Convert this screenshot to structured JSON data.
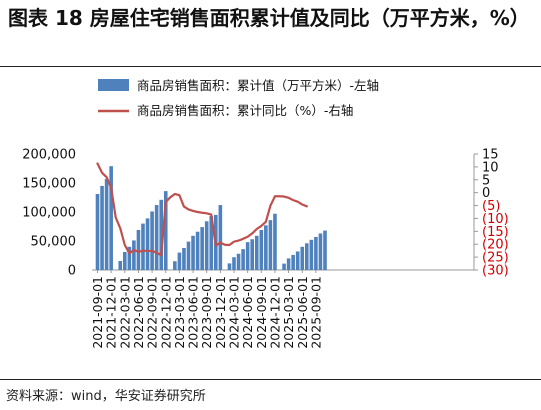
{
  "header": {
    "title": "图表 18 房屋住宅销售面积累计值及同比（万平方米，%）"
  },
  "footer": {
    "source": "资料来源：wind，华安证券研究所"
  },
  "colors": {
    "bar": "#4f81bd",
    "line": "#c0504d",
    "negative_tick": "#d10000"
  },
  "chart_data": {
    "type": "bar+line",
    "legend_placement": "top-left",
    "grid": false,
    "x_ticks": [
      "2021-09-01",
      "2021-12-01",
      "2022-03-01",
      "2022-06-01",
      "2022-09-01",
      "2022-12-01",
      "2023-03-01",
      "2023-06-01",
      "2023-09-01",
      "2023-12-01",
      "2024-03-01",
      "2024-06-01",
      "2024-09-01",
      "2024-12-01",
      "2025-03-01",
      "2025-06-01",
      "2025-09-01"
    ],
    "y_left": {
      "min": 0,
      "max": 200000,
      "ticks": [
        "0",
        "50,000",
        "100,000",
        "150,000",
        "200,000"
      ]
    },
    "y_right": {
      "min": -30,
      "max": 15,
      "ticks": [
        "(30)",
        "(25)",
        "(20)",
        "(15)",
        "(10)",
        "(5)",
        "0",
        "5",
        "10",
        "15"
      ]
    },
    "series": [
      {
        "name": "商品房销售面积：累计值（万平方米）-左轴",
        "kind": "bar",
        "axis": "left",
        "segments": [
          {
            "start": "2021-09",
            "values": [
              131000,
              145000,
              157000,
              179000
            ]
          },
          {
            "start": "2022-02",
            "values": [
              15500,
              31000,
              40000,
              51000,
              69000,
              80000,
              89000,
              101000,
              112000,
              121000,
              136000
            ]
          },
          {
            "start": "2023-02",
            "values": [
              15100,
              30000,
              38000,
              49000,
              59000,
              66000,
              74000,
              84000,
              93000,
              95000,
              112000
            ]
          },
          {
            "start": "2024-02",
            "values": [
              11400,
              22000,
              28000,
              36000,
              48000,
              53000,
              59000,
              69000,
              77000,
              86000,
              97000
            ]
          },
          {
            "start": "2025-02",
            "values": [
              11000,
              20000,
              26000,
              32000,
              40000,
              46000,
              52000,
              57000,
              63000,
              68000
            ]
          }
        ]
      },
      {
        "name": "商品房销售面积：累计同比（%）-右轴",
        "kind": "line",
        "axis": "right",
        "start": "2021-09",
        "values": [
          11.3,
          7.7,
          6.0,
          1.9,
          -9.6,
          -13.8,
          -20.3,
          -23.6,
          -22.2,
          -23.0,
          -22.5,
          -22.6,
          -22.6,
          -23.3,
          -24.3,
          -3.6,
          -1.8,
          -0.5,
          -1.0,
          -5.4,
          -6.5,
          -7.1,
          -7.5,
          -7.8,
          -8.0,
          -8.5,
          -20.5,
          -19.4,
          -20.2,
          -20.3,
          -19.0,
          -18.6,
          -17.9,
          -17.1,
          -15.8,
          -14.1,
          -12.9,
          -11.3,
          -5.1,
          -1.4,
          -1.4,
          -1.5,
          -2.0,
          -2.9,
          -3.5,
          -4.6,
          -5.3
        ]
      }
    ]
  }
}
